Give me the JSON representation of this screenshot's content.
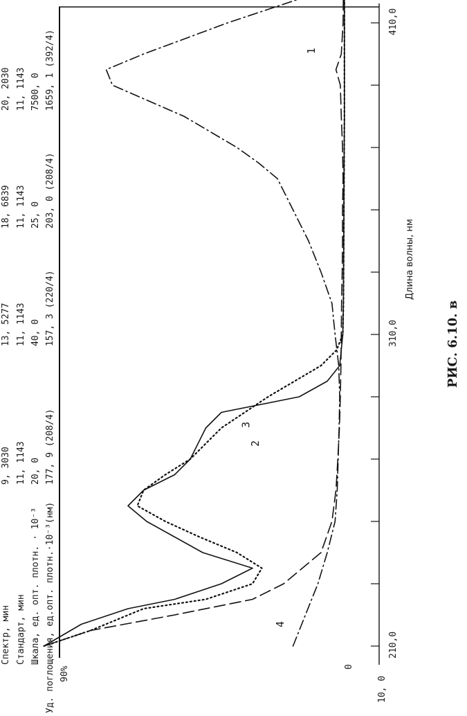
{
  "caption": "РИС. 6.10. в",
  "chart_data": {
    "type": "line",
    "xlabel": "Длина волны, нм",
    "ylabel": "Уд. поглощения, ед.опт.плотн.·10⁻³(нм)",
    "xlim": [
      210,
      420
    ],
    "ylim": [
      0,
      90
    ],
    "x_ticks": [
      {
        "value": 210,
        "label": "210,0"
      },
      {
        "value": 310,
        "label": "310,0"
      },
      {
        "value": 410,
        "label": "410,0"
      }
    ],
    "y_ticks": [
      {
        "value": 0,
        "label": "0"
      },
      {
        "value": 10,
        "label": "10, 0"
      }
    ],
    "y_top_label": "90%",
    "header_rows": [
      {
        "label": "Спектр, мин",
        "values": [
          "9, 3030",
          "13, 5277",
          "18, 6839",
          "20, 2030"
        ]
      },
      {
        "label": "Стандарт, мин",
        "values": [
          "11, 1143",
          "11, 1143",
          "11, 1143",
          "11, 1143"
        ]
      },
      {
        "label": "Шкала, ед. опт. плотн. · 10⁻³",
        "values": [
          "20, 0",
          "40, 0",
          "25, 0",
          "7500, 0"
        ]
      },
      {
        "label": "Уд. поглощения, ед.опт. плотн.·10⁻³(нм)",
        "values": [
          "177, 9 (208/4)",
          "157, 3 (220/4)",
          "203, 0 (208/4)",
          "1659, 1 (392/4)"
        ]
      }
    ],
    "series": [
      {
        "name": "1",
        "style": "dashed",
        "points": [
          [
            210,
            97
          ],
          [
            215,
            82
          ],
          [
            220,
            55
          ],
          [
            225,
            30
          ],
          [
            230,
            20
          ],
          [
            240,
            8.0
          ],
          [
            250,
            4.5
          ],
          [
            260,
            3.2
          ],
          [
            270,
            2.6
          ],
          [
            280,
            2.1
          ],
          [
            290,
            1.8
          ],
          [
            300,
            1.6
          ],
          [
            310,
            1.5
          ],
          [
            320,
            1.4
          ],
          [
            330,
            1.2
          ],
          [
            340,
            1.1
          ],
          [
            350,
            1.1
          ],
          [
            360,
            0.9
          ],
          [
            370,
            1.1
          ],
          [
            380,
            1.5
          ],
          [
            390,
            1.8
          ],
          [
            395,
            3.2
          ],
          [
            400,
            1.5
          ],
          [
            410,
            0.9
          ],
          [
            420,
            0.8
          ]
        ]
      },
      {
        "name": "2",
        "style": "solid",
        "points": [
          [
            210,
            97
          ],
          [
            217,
            85
          ],
          [
            222,
            70
          ],
          [
            225,
            55
          ],
          [
            230,
            40
          ],
          [
            235,
            30
          ],
          [
            240,
            46
          ],
          [
            245,
            55
          ],
          [
            250,
            64
          ],
          [
            255,
            70
          ],
          [
            260,
            65
          ],
          [
            265,
            55
          ],
          [
            270,
            50
          ],
          [
            280,
            45
          ],
          [
            285,
            40
          ],
          [
            290,
            15
          ],
          [
            295,
            6
          ],
          [
            300,
            2
          ],
          [
            310,
            1.0
          ],
          [
            320,
            0.8
          ],
          [
            340,
            0.7
          ],
          [
            360,
            0.6
          ],
          [
            380,
            0.5
          ],
          [
            400,
            0.5
          ],
          [
            420,
            0.5
          ]
        ]
      },
      {
        "name": "3",
        "style": "dotted",
        "points": [
          [
            210,
            97
          ],
          [
            215,
            82
          ],
          [
            222,
            65
          ],
          [
            225,
            45
          ],
          [
            230,
            30
          ],
          [
            235,
            27
          ],
          [
            240,
            35
          ],
          [
            245,
            47
          ],
          [
            250,
            58
          ],
          [
            255,
            67
          ],
          [
            260,
            65
          ],
          [
            265,
            58
          ],
          [
            270,
            50
          ],
          [
            280,
            40
          ],
          [
            290,
            25
          ],
          [
            300,
            8
          ],
          [
            305,
            3
          ],
          [
            310,
            1
          ],
          [
            320,
            0.8
          ],
          [
            340,
            0.7
          ],
          [
            360,
            0.6
          ],
          [
            380,
            0.5
          ],
          [
            400,
            0.5
          ],
          [
            420,
            0.5
          ]
        ]
      },
      {
        "name": "4",
        "style": "dashdot",
        "points": [
          [
            210,
            17
          ],
          [
            215,
            15
          ],
          [
            220,
            13
          ],
          [
            230,
            9
          ],
          [
            240,
            6
          ],
          [
            250,
            3.5
          ],
          [
            260,
            2.8
          ],
          [
            270,
            2.5
          ],
          [
            280,
            2.2
          ],
          [
            290,
            2.0
          ],
          [
            300,
            2.3
          ],
          [
            310,
            3.5
          ],
          [
            320,
            4.5
          ],
          [
            330,
            8
          ],
          [
            340,
            12
          ],
          [
            350,
            17
          ],
          [
            360,
            22
          ],
          [
            365,
            28
          ],
          [
            370,
            35
          ],
          [
            380,
            52
          ],
          [
            390,
            75
          ],
          [
            395,
            77
          ],
          [
            400,
            65
          ],
          [
            410,
            38
          ],
          [
            420,
            8
          ]
        ]
      }
    ],
    "curve_labels": [
      {
        "text": "1",
        "x": 400,
        "y": 10
      },
      {
        "text": "2",
        "x": 274,
        "y": 28
      },
      {
        "text": "3",
        "x": 280,
        "y": 31
      },
      {
        "text": "4",
        "x": 216,
        "y": 20
      }
    ]
  }
}
